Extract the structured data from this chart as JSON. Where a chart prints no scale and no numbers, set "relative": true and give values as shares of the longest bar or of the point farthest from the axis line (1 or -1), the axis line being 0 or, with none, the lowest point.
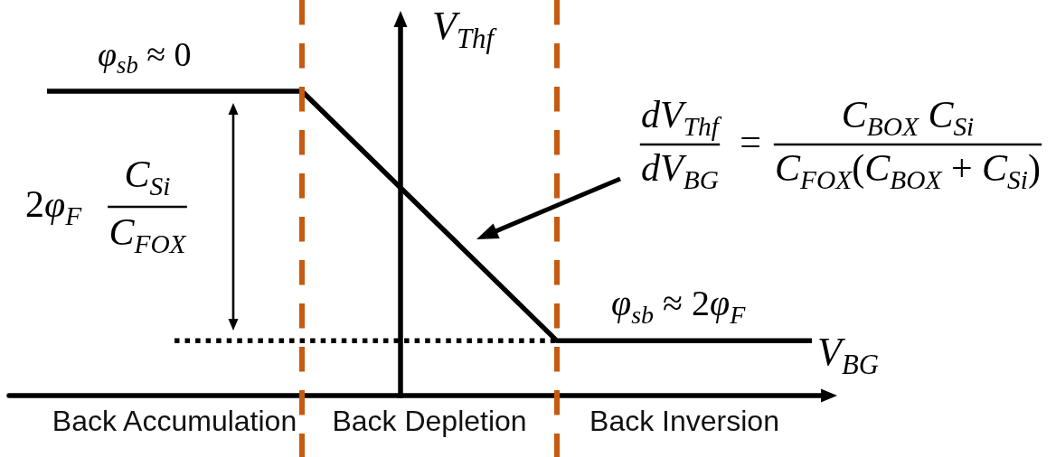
{
  "chart_data": {
    "type": "line",
    "relative": true,
    "xlabel": "V$_{BG}$",
    "ylabel": "V$_{Thf}$",
    "categories": [
      null,
      "Back Accumulation",
      null,
      "Back Depletion",
      null,
      "Back Inversion",
      null
    ],
    "series": [
      {
        "color": "#000000",
        "line_style": "solid",
        "values": [
          1,
          1,
          1,
          0.59,
          0.18,
          0.18,
          0.18
        ]
      },
      {
        "color": "#000000",
        "line_style": "dotted",
        "values": [
          null,
          0.18,
          0.18,
          0.18,
          0.18,
          null,
          null
        ]
      }
    ],
    "annotations": [
      "φ$_{sb}$ ≈ 0",
      "φ$_{sb}$ ≈ 2φ$_{F}$",
      "2φ$_{F}$",
      "C$_{Si}$",
      "C$_{FOX}$",
      "dV$_{Thf}$",
      "dV$_{BG}$",
      "=",
      "C$_{BOX}$ C$_{Si}$",
      "C$_{FOX}$(C$_{BOX}$ + C$_{Si}$)"
    ],
    "marker": "none",
    "grid": "x"
  }
}
